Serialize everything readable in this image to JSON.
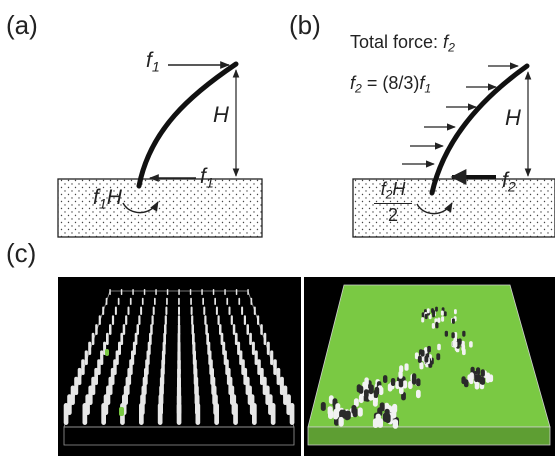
{
  "panel_labels": {
    "a": "(a)",
    "b": "(b)",
    "c": "(c)"
  },
  "panel_a": {
    "f1_top": {
      "sym": "f",
      "sub": "1"
    },
    "H": "H",
    "f1_base": {
      "sym": "f",
      "sub": "1"
    },
    "moment": {
      "sym": "f",
      "sub": "1",
      "tail": "H"
    }
  },
  "panel_b": {
    "total_force": {
      "text": "Total force: ",
      "sym": "f",
      "sub": "2"
    },
    "equation": {
      "lhs": "f",
      "lhs_sub": "2",
      "mid": " = (8/3)",
      "rhs": "f",
      "rhs_sub": "1"
    },
    "H": "H",
    "f2_base": {
      "sym": "f",
      "sub": "2"
    },
    "moment_num": {
      "sym": "f",
      "sub": "2",
      "tail": "H"
    },
    "moment_den": "2"
  },
  "panel_c": {
    "left_view": "pillar array",
    "right_view": "biofilm covered array"
  },
  "colors": {
    "ink": "#222222",
    "biofilm": "#7ac943",
    "background": "#000000"
  }
}
